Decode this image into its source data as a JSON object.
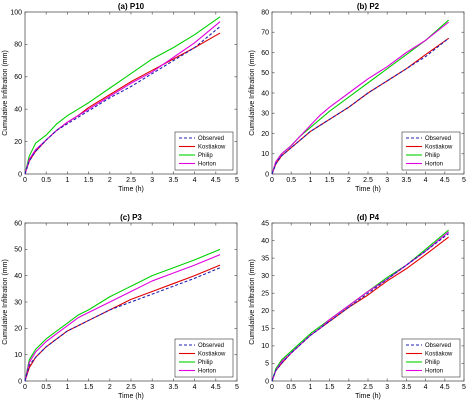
{
  "chart_data": [
    {
      "type": "line",
      "title": "(a) P10",
      "xlabel": "Time (h)",
      "ylabel": "Cumulative Infiltration (mm)",
      "xlim": [
        0,
        5
      ],
      "ylim": [
        0,
        100
      ],
      "xticks": [
        "0",
        "0.5",
        "1",
        "1.5",
        "2",
        "2.5",
        "3",
        "3.5",
        "4",
        "4.5",
        "5"
      ],
      "yticks": [
        "0",
        "20",
        "40",
        "60",
        "80",
        "100"
      ],
      "legend_position": "lower-right",
      "x": [
        0,
        0.1,
        0.25,
        0.5,
        0.75,
        1,
        1.25,
        1.5,
        2,
        2.5,
        3,
        3.5,
        4,
        4.6
      ],
      "series": [
        {
          "name": "Observed",
          "color": "#1f1fb4",
          "dash": true,
          "values": [
            0,
            8,
            14,
            21,
            27,
            31,
            35,
            39,
            47,
            54,
            62,
            70,
            78,
            91
          ]
        },
        {
          "name": "Kostiakow",
          "color": "#e00000",
          "dash": false,
          "values": [
            0,
            8,
            14,
            21,
            27,
            32,
            36,
            41,
            49,
            57,
            64,
            71,
            78,
            87
          ]
        },
        {
          "name": "Philip",
          "color": "#00d000",
          "dash": false,
          "values": [
            0,
            11,
            19,
            24,
            31,
            36,
            40,
            44,
            53,
            62,
            71,
            78,
            86,
            97
          ]
        },
        {
          "name": "Horton",
          "color": "#e000e0",
          "dash": false,
          "values": [
            0,
            9,
            15,
            21,
            27,
            32,
            36,
            40,
            48,
            56,
            63,
            72,
            81,
            94
          ]
        }
      ]
    },
    {
      "type": "line",
      "title": "(b) P2",
      "xlabel": "Time (h)",
      "ylabel": "Cumulative Infiltration (mm)",
      "xlim": [
        0,
        5
      ],
      "ylim": [
        0,
        80
      ],
      "xticks": [
        "0",
        "0.5",
        "1",
        "1.5",
        "2",
        "2.5",
        "3",
        "3.5",
        "4",
        "4.5",
        "5"
      ],
      "yticks": [
        "0",
        "10",
        "20",
        "30",
        "40",
        "50",
        "60",
        "70",
        "80"
      ],
      "legend_position": "lower-right",
      "x": [
        0,
        0.1,
        0.25,
        0.5,
        0.75,
        1,
        1.25,
        1.5,
        2,
        2.5,
        3,
        3.5,
        4,
        4.6
      ],
      "series": [
        {
          "name": "Observed",
          "color": "#1f1fb4",
          "dash": true,
          "values": [
            0,
            5,
            9,
            13,
            17,
            21,
            24,
            27,
            33,
            40,
            46,
            52,
            58,
            67
          ]
        },
        {
          "name": "Kostiakow",
          "color": "#e00000",
          "dash": false,
          "values": [
            0,
            5,
            9,
            13,
            17,
            21,
            24,
            27,
            33,
            40,
            46,
            52,
            59,
            67
          ]
        },
        {
          "name": "Philip",
          "color": "#00d000",
          "dash": false,
          "values": [
            0,
            6,
            10,
            14,
            19,
            23,
            27,
            31,
            38,
            45,
            52,
            59,
            66,
            76
          ]
        },
        {
          "name": "Horton",
          "color": "#e000e0",
          "dash": false,
          "values": [
            0,
            6,
            10,
            14,
            19,
            24,
            29,
            33,
            40,
            47,
            53,
            60,
            66,
            75
          ]
        }
      ]
    },
    {
      "type": "line",
      "title": "(c) P3",
      "xlabel": "Time (h)",
      "ylabel": "Cumulative Infiltration (mm)",
      "xlim": [
        0,
        5
      ],
      "ylim": [
        0,
        60
      ],
      "xticks": [
        "0",
        "0.5",
        "1",
        "1.5",
        "2",
        "2.5",
        "3",
        "3.5",
        "4",
        "4.5",
        "5"
      ],
      "yticks": [
        "0",
        "10",
        "20",
        "30",
        "40",
        "50",
        "60"
      ],
      "legend_position": "lower-right",
      "x": [
        0,
        0.1,
        0.25,
        0.5,
        0.75,
        1,
        1.25,
        1.5,
        2,
        2.5,
        3,
        3.5,
        4,
        4.6
      ],
      "series": [
        {
          "name": "Observed",
          "color": "#1f1fb4",
          "dash": true,
          "values": [
            0,
            6,
            9,
            13,
            16,
            19,
            21,
            23,
            27,
            30,
            33,
            36,
            39,
            43
          ]
        },
        {
          "name": "Kostiakow",
          "color": "#e00000",
          "dash": false,
          "values": [
            0,
            5,
            9,
            13,
            16,
            19,
            21,
            23,
            27,
            31,
            34,
            37,
            40,
            44
          ]
        },
        {
          "name": "Philip",
          "color": "#00d000",
          "dash": false,
          "values": [
            0,
            8,
            12,
            16,
            19,
            22,
            25,
            27,
            32,
            36,
            40,
            43,
            46,
            50
          ]
        },
        {
          "name": "Horton",
          "color": "#e000e0",
          "dash": false,
          "values": [
            0,
            7,
            11,
            15,
            18,
            21,
            24,
            26,
            30,
            34,
            38,
            41,
            44,
            48
          ]
        }
      ]
    },
    {
      "type": "line",
      "title": "(d) P4",
      "xlabel": "Time (h)",
      "ylabel": "Cumulative Infiltration (mm)",
      "xlim": [
        0,
        5
      ],
      "ylim": [
        0,
        45
      ],
      "xticks": [
        "0",
        "0.5",
        "1",
        "1.5",
        "2",
        "2.5",
        "3",
        "3.5",
        "4",
        "4.5",
        "5"
      ],
      "yticks": [
        "0",
        "5",
        "10",
        "15",
        "20",
        "25",
        "30",
        "35",
        "40",
        "45"
      ],
      "legend_position": "lower-right",
      "x": [
        0,
        0.1,
        0.25,
        0.5,
        0.75,
        1,
        1.25,
        1.5,
        2,
        2.5,
        3,
        3.5,
        4,
        4.6
      ],
      "series": [
        {
          "name": "Observed",
          "color": "#1f1fb4",
          "dash": true,
          "values": [
            0,
            3,
            5,
            8,
            10.5,
            13,
            15,
            17,
            21,
            25,
            29,
            33,
            37,
            42
          ]
        },
        {
          "name": "Kostiakow",
          "color": "#e00000",
          "dash": false,
          "values": [
            0,
            3,
            5,
            8,
            10.5,
            13,
            15,
            17,
            21,
            24.5,
            28.5,
            32,
            36,
            41
          ]
        },
        {
          "name": "Philip",
          "color": "#00d000",
          "dash": false,
          "values": [
            0,
            3.5,
            6,
            8.5,
            11,
            13.5,
            15.5,
            17.5,
            21.5,
            25.5,
            29.5,
            33,
            37.5,
            43
          ]
        },
        {
          "name": "Horton",
          "color": "#e000e0",
          "dash": false,
          "values": [
            0,
            3,
            5.5,
            8,
            10.5,
            13,
            15,
            17.5,
            21.5,
            25.5,
            29,
            33,
            37,
            42.5
          ]
        }
      ]
    }
  ]
}
